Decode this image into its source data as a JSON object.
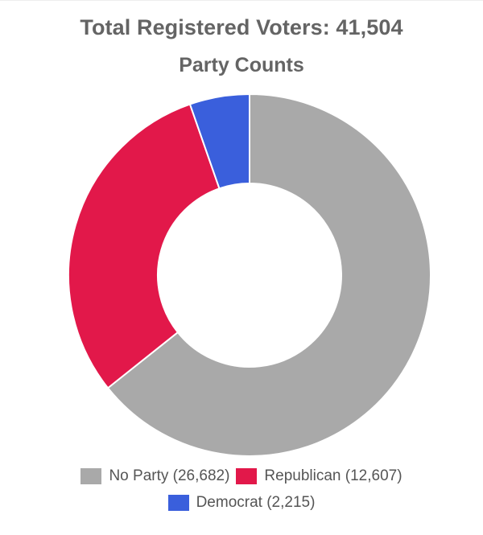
{
  "chart_data": {
    "type": "pie",
    "title": "Total Registered Voters: 41,504",
    "subtitle": "Party Counts",
    "legend_position": "bottom",
    "donut": true,
    "series": [
      {
        "name": "No Party",
        "value": 26682,
        "label": "No Party (26,682)",
        "color": "#a9a9a9"
      },
      {
        "name": "Republican",
        "value": 12607,
        "label": "Republican (12,607)",
        "color": "#e2184a"
      },
      {
        "name": "Democrat",
        "value": 2215,
        "label": "Democrat (2,215)",
        "color": "#3a5fdc"
      }
    ]
  }
}
